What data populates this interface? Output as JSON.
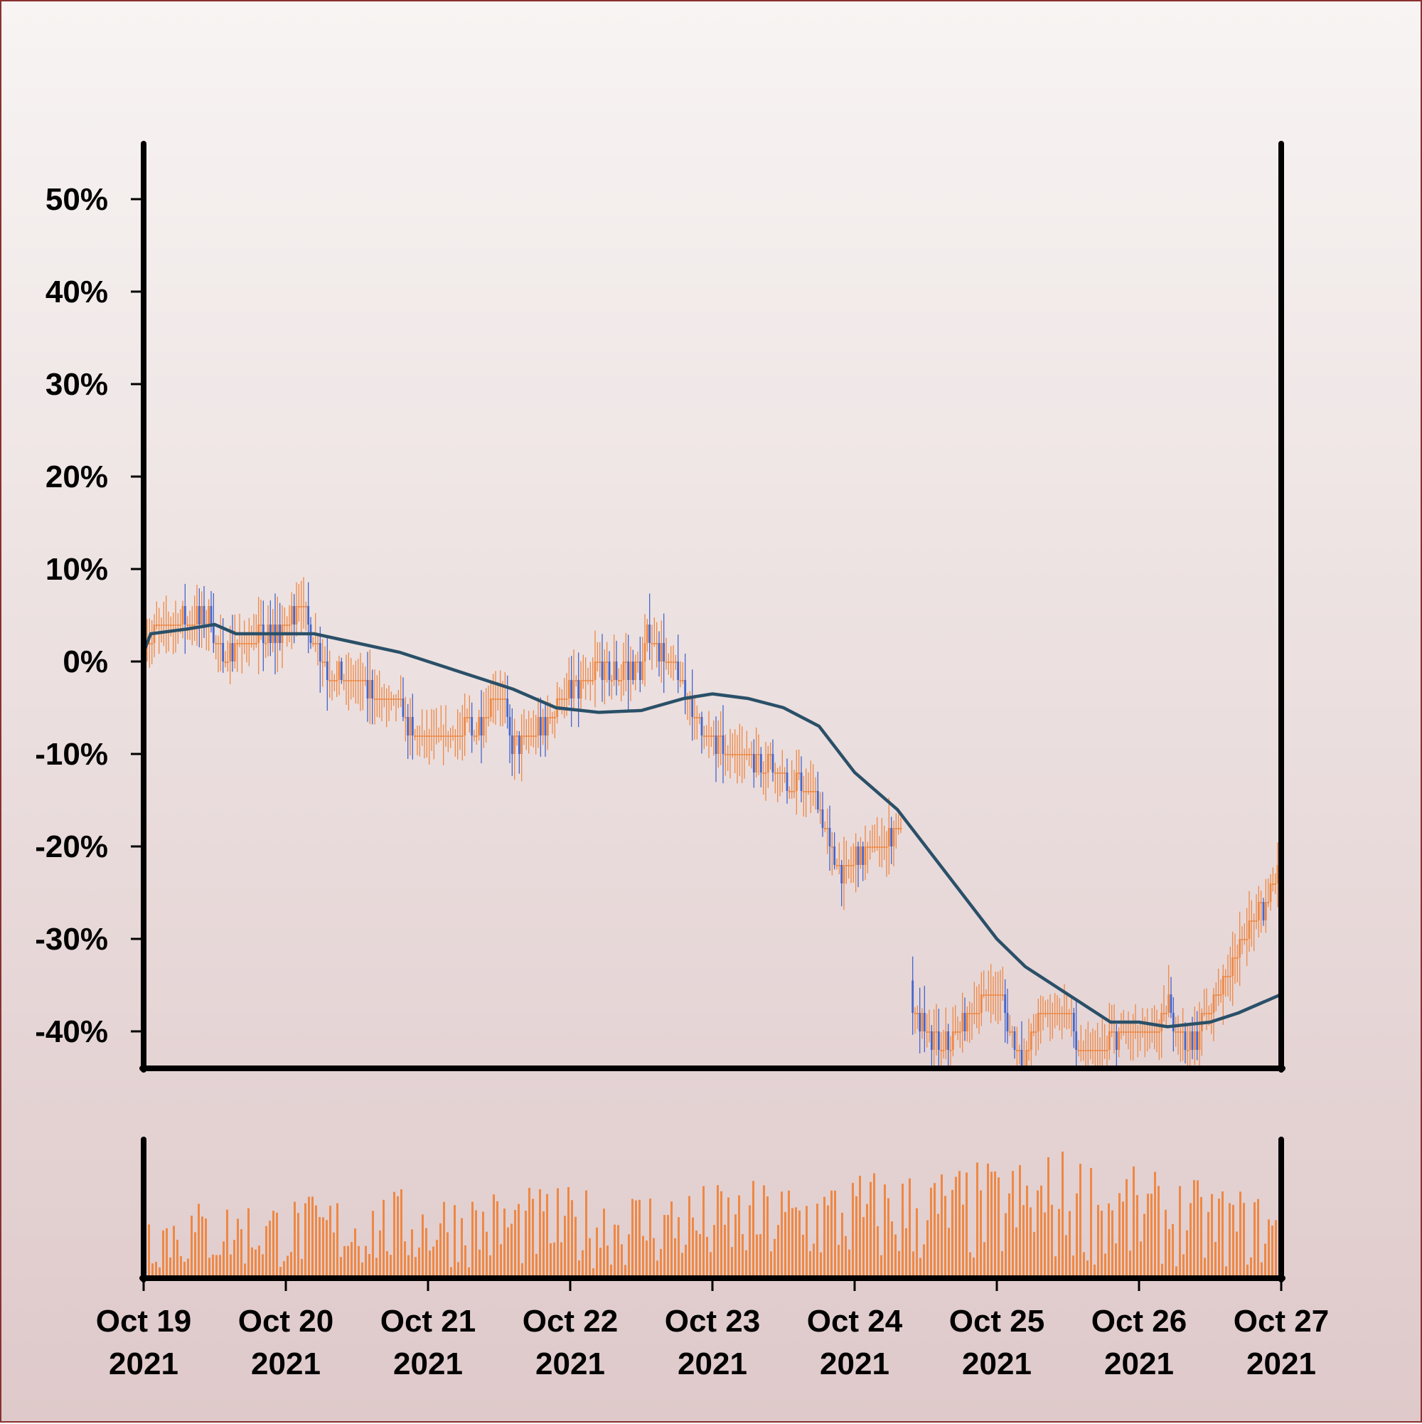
{
  "chart_data": {
    "type": "candlestick",
    "title": "",
    "xlabel": "",
    "ylabel": "",
    "y_axis": {
      "ticks": [
        50,
        40,
        30,
        20,
        10,
        0,
        -10,
        -20,
        -30,
        -40
      ],
      "tick_labels": [
        "50%",
        "40%",
        "30%",
        "20%",
        "10%",
        "0%",
        "-10%",
        "-20%",
        "-30%",
        "-40%"
      ],
      "ylim": [
        -44,
        56
      ]
    },
    "x_axis": {
      "range_days": [
        0,
        8
      ],
      "tick_labels": [
        [
          "Oct 19",
          "2021"
        ],
        [
          "Oct 20",
          "2021"
        ],
        [
          "Oct 21",
          "2021"
        ],
        [
          "Oct 22",
          "2021"
        ],
        [
          "Oct 23",
          "2021"
        ],
        [
          "Oct 24",
          "2021"
        ],
        [
          "Oct 25",
          "2021"
        ],
        [
          "Oct 26",
          "2021"
        ],
        [
          "Oct 27",
          "2021"
        ]
      ]
    },
    "colors": {
      "up": "#ee8844",
      "down": "#4466cc",
      "moving_average": "#2a5068",
      "volume": "#ee8844"
    },
    "price_path_percent": [
      {
        "day": 0.0,
        "value": 2
      },
      {
        "day": 0.15,
        "value": 4
      },
      {
        "day": 0.45,
        "value": 5
      },
      {
        "day": 0.55,
        "value": 0
      },
      {
        "day": 0.7,
        "value": 2
      },
      {
        "day": 0.95,
        "value": 3
      },
      {
        "day": 1.1,
        "value": 6
      },
      {
        "day": 1.3,
        "value": -1
      },
      {
        "day": 1.6,
        "value": -3
      },
      {
        "day": 1.8,
        "value": -5
      },
      {
        "day": 1.9,
        "value": -8
      },
      {
        "day": 2.1,
        "value": -8
      },
      {
        "day": 2.35,
        "value": -7
      },
      {
        "day": 2.5,
        "value": -3
      },
      {
        "day": 2.6,
        "value": -9
      },
      {
        "day": 2.75,
        "value": -8
      },
      {
        "day": 2.95,
        "value": -4
      },
      {
        "day": 3.2,
        "value": -1
      },
      {
        "day": 3.35,
        "value": -1
      },
      {
        "day": 3.5,
        "value": -1
      },
      {
        "day": 3.55,
        "value": 3
      },
      {
        "day": 3.75,
        "value": -1
      },
      {
        "day": 3.85,
        "value": -5
      },
      {
        "day": 4.0,
        "value": -9
      },
      {
        "day": 4.15,
        "value": -10
      },
      {
        "day": 4.4,
        "value": -11
      },
      {
        "day": 4.55,
        "value": -13
      },
      {
        "day": 4.7,
        "value": -14
      },
      {
        "day": 4.9,
        "value": -23
      },
      {
        "day": 5.0,
        "value": -21
      },
      {
        "day": 5.2,
        "value": -20
      },
      {
        "day": 5.35,
        "value": -17
      },
      {
        "day": 5.4,
        "value": -38
      },
      {
        "day": 5.6,
        "value": -42
      },
      {
        "day": 5.9,
        "value": -37
      },
      {
        "day": 6.0,
        "value": -35
      },
      {
        "day": 6.1,
        "value": -40
      },
      {
        "day": 6.2,
        "value": -44
      },
      {
        "day": 6.3,
        "value": -38
      },
      {
        "day": 6.5,
        "value": -38
      },
      {
        "day": 6.6,
        "value": -43
      },
      {
        "day": 6.9,
        "value": -40
      },
      {
        "day": 7.1,
        "value": -41
      },
      {
        "day": 7.2,
        "value": -37
      },
      {
        "day": 7.35,
        "value": -42
      },
      {
        "day": 7.5,
        "value": -38
      },
      {
        "day": 7.6,
        "value": -34
      },
      {
        "day": 7.75,
        "value": -30
      },
      {
        "day": 7.9,
        "value": -26
      },
      {
        "day": 7.97,
        "value": -22
      },
      {
        "day": 8.0,
        "value": -25
      }
    ],
    "moving_average_percent": [
      {
        "day": 0.0,
        "value": 1
      },
      {
        "day": 0.05,
        "value": 3
      },
      {
        "day": 0.3,
        "value": 3.5
      },
      {
        "day": 0.5,
        "value": 4
      },
      {
        "day": 0.65,
        "value": 3
      },
      {
        "day": 1.0,
        "value": 3
      },
      {
        "day": 1.2,
        "value": 3
      },
      {
        "day": 1.5,
        "value": 2
      },
      {
        "day": 1.8,
        "value": 1
      },
      {
        "day": 2.2,
        "value": -1
      },
      {
        "day": 2.6,
        "value": -3
      },
      {
        "day": 2.9,
        "value": -5
      },
      {
        "day": 3.2,
        "value": -5.5
      },
      {
        "day": 3.5,
        "value": -5.3
      },
      {
        "day": 3.8,
        "value": -4
      },
      {
        "day": 4.0,
        "value": -3.5
      },
      {
        "day": 4.25,
        "value": -4
      },
      {
        "day": 4.5,
        "value": -5
      },
      {
        "day": 4.75,
        "value": -7
      },
      {
        "day": 5.0,
        "value": -12
      },
      {
        "day": 5.3,
        "value": -16
      },
      {
        "day": 5.6,
        "value": -22
      },
      {
        "day": 5.8,
        "value": -26
      },
      {
        "day": 6.0,
        "value": -30
      },
      {
        "day": 6.2,
        "value": -33
      },
      {
        "day": 6.4,
        "value": -35
      },
      {
        "day": 6.6,
        "value": -37
      },
      {
        "day": 6.8,
        "value": -39
      },
      {
        "day": 7.0,
        "value": -39
      },
      {
        "day": 7.2,
        "value": -39.5
      },
      {
        "day": 7.5,
        "value": -39
      },
      {
        "day": 7.7,
        "value": -38
      },
      {
        "day": 7.85,
        "value": -37
      },
      {
        "day": 8.0,
        "value": -36
      }
    ],
    "volume": {
      "relative_level_by_day": [
        {
          "day": 0,
          "level": 0.42
        },
        {
          "day": 1,
          "level": 0.45
        },
        {
          "day": 2,
          "level": 0.5
        },
        {
          "day": 3,
          "level": 0.5
        },
        {
          "day": 4,
          "level": 0.52
        },
        {
          "day": 4.5,
          "level": 0.55
        },
        {
          "day": 5,
          "level": 0.6
        },
        {
          "day": 5.6,
          "level": 0.62
        },
        {
          "day": 6,
          "level": 0.65
        },
        {
          "day": 6.5,
          "level": 0.72
        },
        {
          "day": 7,
          "level": 0.6
        },
        {
          "day": 8,
          "level": 0.45
        }
      ]
    },
    "gaps_days": [
      [
        5.33,
        5.4
      ]
    ]
  }
}
